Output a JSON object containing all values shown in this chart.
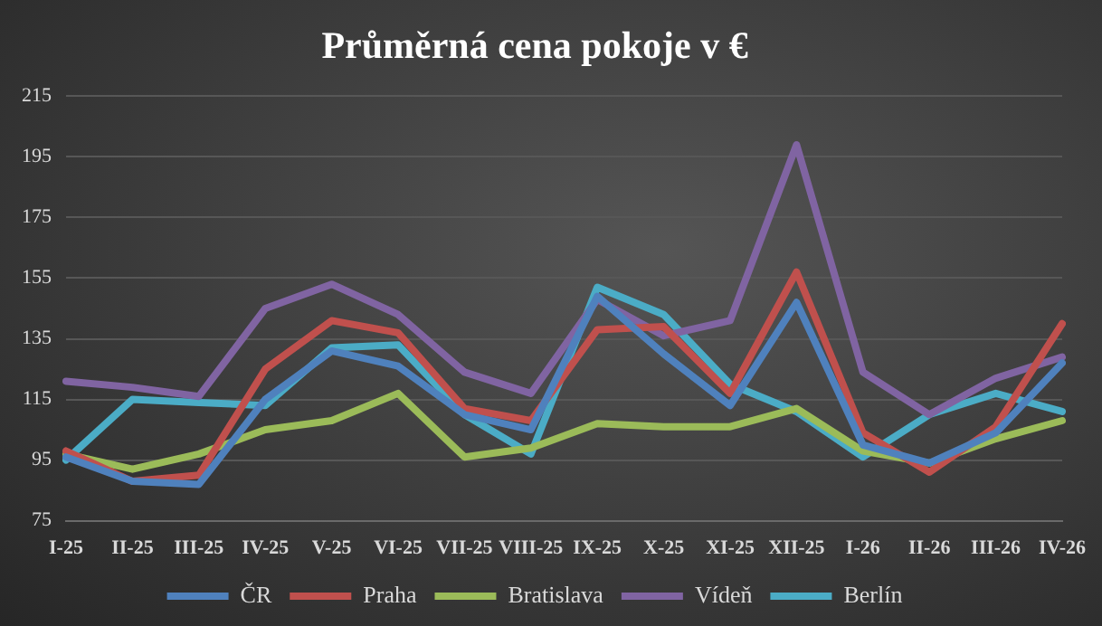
{
  "chart_data": {
    "type": "line",
    "title": "Průměrná cena pokoje v €",
    "categories": [
      "I-25",
      "II-25",
      "III-25",
      "IV-25",
      "V-25",
      "VI-25",
      "VII-25",
      "VIII-25",
      "IX-25",
      "X-25",
      "XI-25",
      "XII-25",
      "I-26",
      "II-26",
      "III-26",
      "IV-26"
    ],
    "series": [
      {
        "name": "ČR",
        "color": "#4f81bd",
        "values": [
          96,
          88,
          87,
          115,
          131,
          126,
          110,
          105,
          149,
          130,
          113,
          147,
          100,
          94,
          104,
          127
        ]
      },
      {
        "name": "Praha",
        "color": "#c0504d",
        "values": [
          98,
          88,
          90,
          125,
          141,
          137,
          112,
          108,
          138,
          139,
          117,
          157,
          104,
          91,
          106,
          140
        ]
      },
      {
        "name": "Bratislava",
        "color": "#9bbb59",
        "values": [
          97,
          92,
          97,
          105,
          108,
          117,
          96,
          99,
          107,
          106,
          106,
          112,
          98,
          94,
          102,
          108
        ]
      },
      {
        "name": "Vídeň",
        "color": "#8064a2",
        "values": [
          121,
          119,
          116,
          145,
          153,
          143,
          124,
          117,
          148,
          136,
          141,
          199,
          124,
          110,
          122,
          129
        ]
      },
      {
        "name": "Berlín",
        "color": "#4bacc6",
        "values": [
          95,
          115,
          114,
          113,
          132,
          133,
          110,
          97,
          152,
          143,
          120,
          111,
          96,
          110,
          117,
          111
        ]
      }
    ],
    "ylim": [
      75,
      215
    ],
    "yticks": [
      75,
      95,
      115,
      135,
      155,
      175,
      195,
      215
    ],
    "grid": "y",
    "legend": "bottom",
    "marker": "none",
    "line_style": "solid"
  }
}
